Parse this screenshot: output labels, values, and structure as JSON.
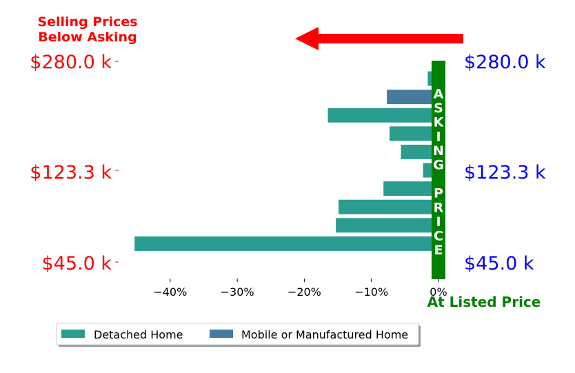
{
  "chart_data": {
    "type": "bar",
    "orientation": "horizontal",
    "xlim": [
      -0.47,
      0.01
    ],
    "xticks": [
      -0.4,
      -0.3,
      -0.2,
      -0.1,
      0.0
    ],
    "xtick_labels": [
      "−40%",
      "−30%",
      "−20%",
      "−10%",
      "0%"
    ],
    "bars": [
      {
        "value": -0.016,
        "series": "Detached Home"
      },
      {
        "value": -0.077,
        "series": "Mobile or Manufactured Home"
      },
      {
        "value": -0.165,
        "series": "Detached Home"
      },
      {
        "value": -0.073,
        "series": "Detached Home"
      },
      {
        "value": -0.056,
        "series": "Detached Home"
      },
      {
        "value": -0.023,
        "series": "Detached Home"
      },
      {
        "value": -0.082,
        "series": "Detached Home"
      },
      {
        "value": -0.149,
        "series": "Detached Home"
      },
      {
        "value": -0.153,
        "series": "Detached Home"
      },
      {
        "value": -0.453,
        "series": "Detached Home"
      }
    ],
    "left_labels": [
      "$280.0 k",
      "$123.3 k",
      "$45.0 k"
    ],
    "right_labels": [
      "$280.0 k",
      "$123.3 k",
      "$45.0 k"
    ],
    "title_lines": [
      "Selling Prices",
      "Below Asking"
    ],
    "asking_price_letters": [
      "A",
      "S",
      "K",
      "I",
      "N",
      "G",
      "",
      "P",
      "R",
      "I",
      "C",
      "E"
    ],
    "at_listed_price": "At Listed Price",
    "legend": {
      "placement": "bottom-left",
      "entries": [
        {
          "name": "Detached Home",
          "color": "#2a9d8f"
        },
        {
          "name": "Mobile or Manufactured Home",
          "color": "#457b9d"
        }
      ]
    },
    "colors": {
      "left_labels": "#ff0000",
      "right_labels": "#0000ff",
      "asking_bar": "#008000",
      "arrow": "#ff0000"
    }
  }
}
